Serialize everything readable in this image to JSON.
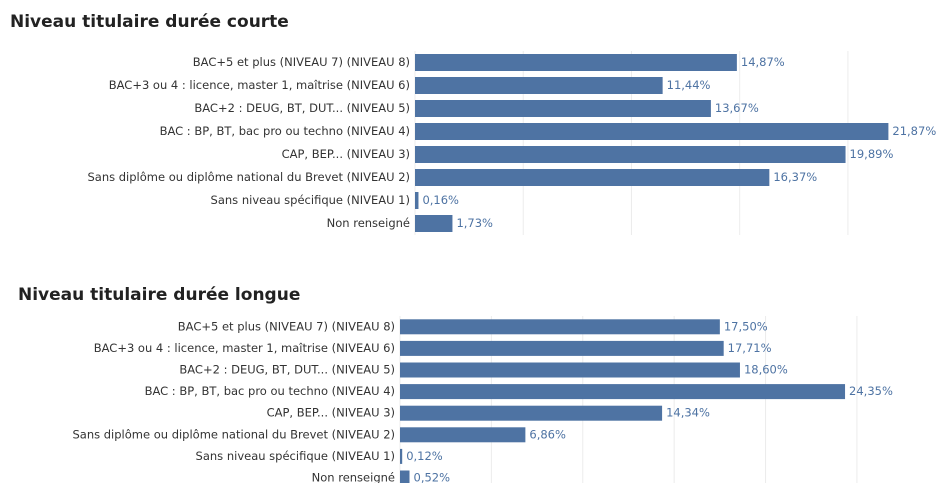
{
  "chart_data": [
    {
      "type": "hbar",
      "title": "Niveau titulaire durée courte",
      "categories": [
        "BAC+5 et plus  (NIVEAU 7)  (NIVEAU 8)",
        "BAC+3 ou 4 : licence, master 1, maîtrise (NIVEAU 6)",
        "BAC+2 : DEUG, BT, DUT... (NIVEAU 5)",
        "BAC : BP, BT, bac pro ou techno (NIVEAU 4)",
        "CAP, BEP... (NIVEAU 3)",
        "Sans diplôme ou diplôme national du Brevet (NIVEAU 2)",
        "Sans niveau spécifique (NIVEAU 1)",
        "Non renseigné"
      ],
      "values": [
        14.87,
        11.44,
        13.67,
        21.87,
        19.89,
        16.37,
        0.16,
        1.73
      ],
      "value_labels": [
        "14,87%",
        "11,44%",
        "13,67%",
        "21,87%",
        "19,89%",
        "16,37%",
        "0,16%",
        "1,73%"
      ],
      "color": "#4e73a3",
      "xlim": [
        0,
        24.3
      ],
      "xticks": [
        0,
        5,
        10,
        15,
        20
      ],
      "grid": true
    },
    {
      "type": "hbar",
      "title": "Niveau titulaire durée longue",
      "categories": [
        "BAC+5 et plus  (NIVEAU 7)  (NIVEAU 8)",
        "BAC+3 ou 4 : licence, master 1, maîtrise (NIVEAU 6)",
        "BAC+2 : DEUG, BT, DUT... (NIVEAU 5)",
        "BAC : BP, BT, bac pro ou techno (NIVEAU 4)",
        "CAP, BEP... (NIVEAU 3)",
        "Sans diplôme ou diplôme national du Brevet (NIVEAU 2)",
        "Sans niveau spécifique (NIVEAU 1)",
        "Non renseigné"
      ],
      "values": [
        17.5,
        17.71,
        18.6,
        24.35,
        14.34,
        6.86,
        0.12,
        0.52
      ],
      "value_labels": [
        "17,50%",
        "17,71%",
        "18,60%",
        "24,35%",
        "14,34%",
        "6,86%",
        "0,12%",
        "0,52%"
      ],
      "color": "#4e73a3",
      "xlim": [
        0,
        29.6
      ],
      "xticks": [
        0,
        5,
        10,
        15,
        20,
        25
      ],
      "grid": true
    }
  ]
}
